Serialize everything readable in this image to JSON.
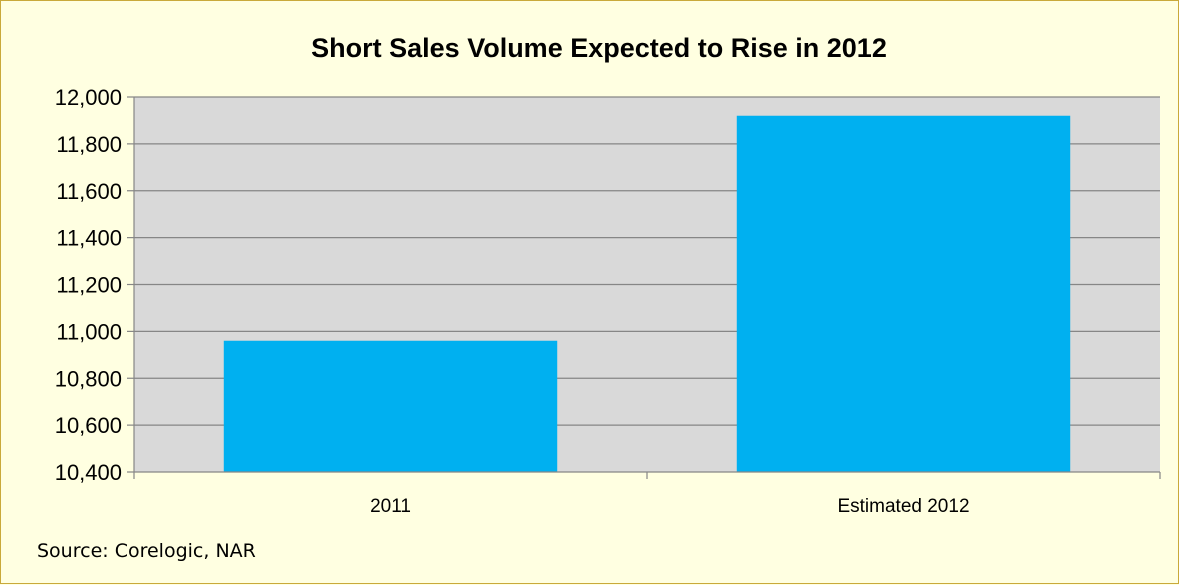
{
  "chart_data": {
    "type": "bar",
    "title": "Short Sales Volume Expected to Rise in 2012",
    "xlabel": "",
    "ylabel": "",
    "categories": [
      "2011",
      "Estimated 2012"
    ],
    "values": [
      10960,
      11920
    ],
    "ylim": [
      10400,
      12000
    ],
    "yticks": [
      10400,
      10600,
      10800,
      11000,
      11200,
      11400,
      11600,
      11800,
      12000
    ],
    "ytick_labels": [
      "10,400",
      "10,600",
      "10,800",
      "11,000",
      "11,200",
      "11,400",
      "11,600",
      "11,800",
      "12,000"
    ],
    "grid": true,
    "legend": "none",
    "colors": {
      "bar": "#00b0f0",
      "plot_background": "#d9d9d9",
      "gridline": "#868686",
      "page_background": "#ffffe1",
      "border": "#c9a93a"
    }
  },
  "source_note": "Source: Corelogic, NAR"
}
